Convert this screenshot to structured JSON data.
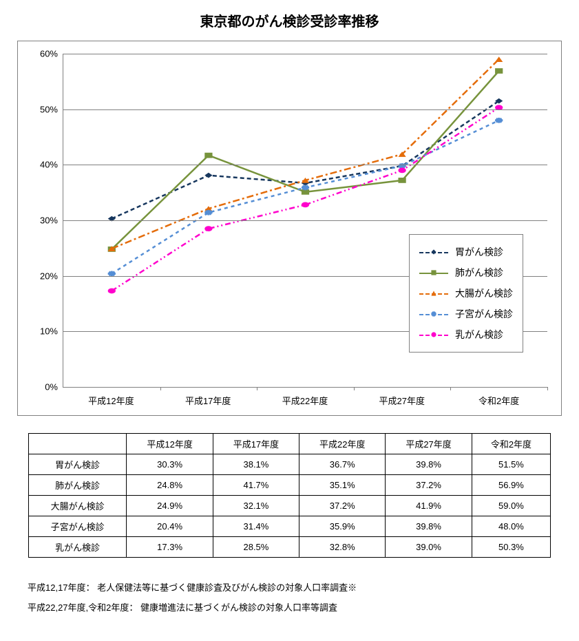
{
  "title": "東京都のがん検診受診率推移",
  "chart": {
    "type": "line",
    "ylim": [
      0,
      60
    ],
    "ytick_step": 10,
    "y_suffix": "%",
    "categories": [
      "平成12年度",
      "平成17年度",
      "平成22年度",
      "平成27年度",
      "令和2年度"
    ],
    "grid_color": "#808080",
    "background_color": "#ffffff",
    "series": [
      {
        "label": "胃がん検診",
        "color": "#17375e",
        "dash": "6,4",
        "marker": "diamond",
        "values": [
          30.3,
          38.1,
          36.7,
          39.8,
          51.5
        ]
      },
      {
        "label": "肺がん検診",
        "color": "#77933c",
        "dash": "",
        "marker": "square",
        "values": [
          24.8,
          41.7,
          35.1,
          37.2,
          56.9
        ]
      },
      {
        "label": "大腸がん検診",
        "color": "#e46c0a",
        "dash": "10,4,3,4",
        "marker": "triangle",
        "values": [
          24.9,
          32.1,
          37.2,
          41.9,
          59.0
        ]
      },
      {
        "label": "子宮がん検診",
        "color": "#558ed5",
        "dash": "5,5",
        "marker": "asterisk",
        "values": [
          20.4,
          31.4,
          35.9,
          39.8,
          48.0
        ]
      },
      {
        "label": "乳がん検診",
        "color": "#ff00cc",
        "dash": "8,4,2,4,2,4",
        "marker": "circle",
        "values": [
          17.3,
          28.5,
          32.8,
          39.0,
          50.3
        ]
      }
    ],
    "label_fontsize": 13,
    "line_width": 2.5,
    "marker_size": 8
  },
  "table": {
    "corner": "",
    "columns": [
      "平成12年度",
      "平成17年度",
      "平成22年度",
      "平成27年度",
      "令和2年度"
    ],
    "rows": [
      {
        "label": "胃がん検診",
        "cells": [
          "30.3%",
          "38.1%",
          "36.7%",
          "39.8%",
          "51.5%"
        ]
      },
      {
        "label": "肺がん検診",
        "cells": [
          "24.8%",
          "41.7%",
          "35.1%",
          "37.2%",
          "56.9%"
        ]
      },
      {
        "label": "大腸がん検診",
        "cells": [
          "24.9%",
          "32.1%",
          "37.2%",
          "41.9%",
          "59.0%"
        ]
      },
      {
        "label": "子宮がん検診",
        "cells": [
          "20.4%",
          "31.4%",
          "35.9%",
          "39.8%",
          "48.0%"
        ]
      },
      {
        "label": "乳がん検診",
        "cells": [
          "17.3%",
          "28.5%",
          "32.8%",
          "39.0%",
          "50.3%"
        ]
      }
    ]
  },
  "footnotes": [
    "平成12,17年度： 老人保健法等に基づく健康診査及びがん検診の対象人口率調査※",
    "平成22,27年度,令和2年度： 健康増進法に基づくがん検診の対象人口率等調査"
  ]
}
